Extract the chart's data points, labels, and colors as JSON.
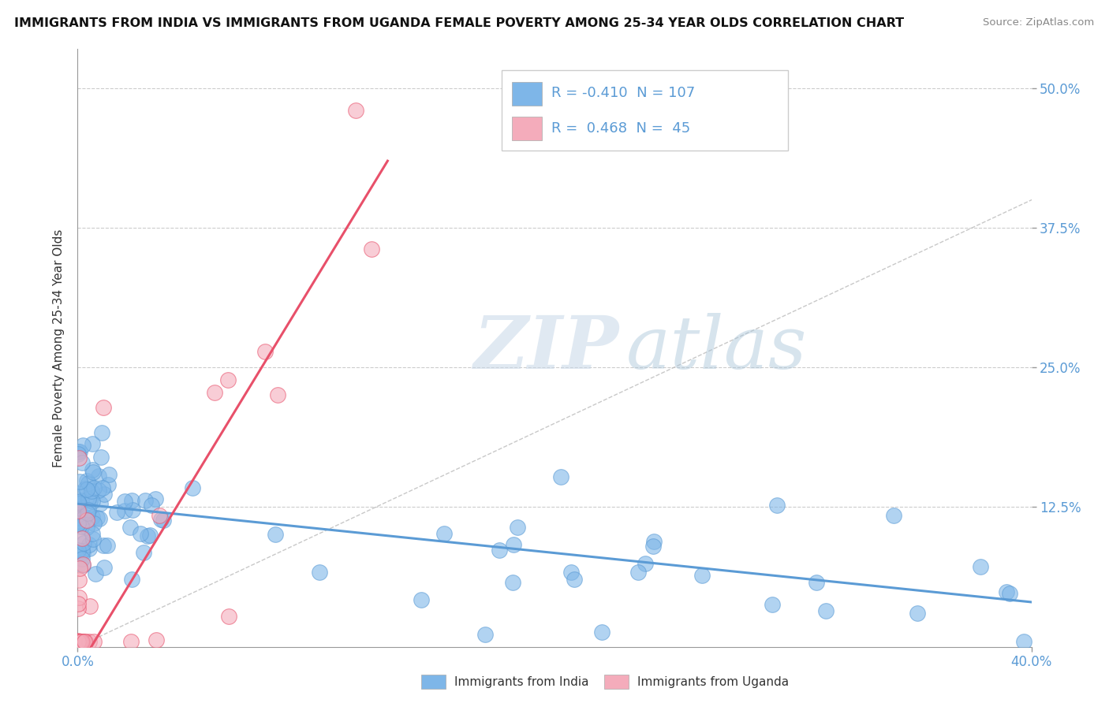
{
  "title": "IMMIGRANTS FROM INDIA VS IMMIGRANTS FROM UGANDA FEMALE POVERTY AMONG 25-34 YEAR OLDS CORRELATION CHART",
  "source_text": "Source: ZipAtlas.com",
  "ylabel": "Female Poverty Among 25-34 Year Olds",
  "yticks_labels": [
    "12.5%",
    "25.0%",
    "37.5%",
    "50.0%"
  ],
  "ytick_vals": [
    0.125,
    0.25,
    0.375,
    0.5
  ],
  "xlim": [
    0.0,
    0.4
  ],
  "ylim": [
    0.0,
    0.535
  ],
  "india_color": "#7EB6E8",
  "india_edge_color": "#5B9BD5",
  "uganda_color": "#F4ACBB",
  "uganda_edge_color": "#E8506A",
  "india_line_color": "#5B9BD5",
  "uganda_line_color": "#E8506A",
  "legend_R_india": "-0.410",
  "legend_N_india": "107",
  "legend_R_uganda": "0.468",
  "legend_N_uganda": "45",
  "watermark_zip": "ZIP",
  "watermark_atlas": "atlas",
  "background_color": "#FFFFFF",
  "grid_color": "#CCCCCC",
  "tick_color": "#5B9BD5",
  "india_intercept": 0.128,
  "india_slope": -0.22,
  "uganda_intercept": -0.02,
  "uganda_slope": 3.5
}
